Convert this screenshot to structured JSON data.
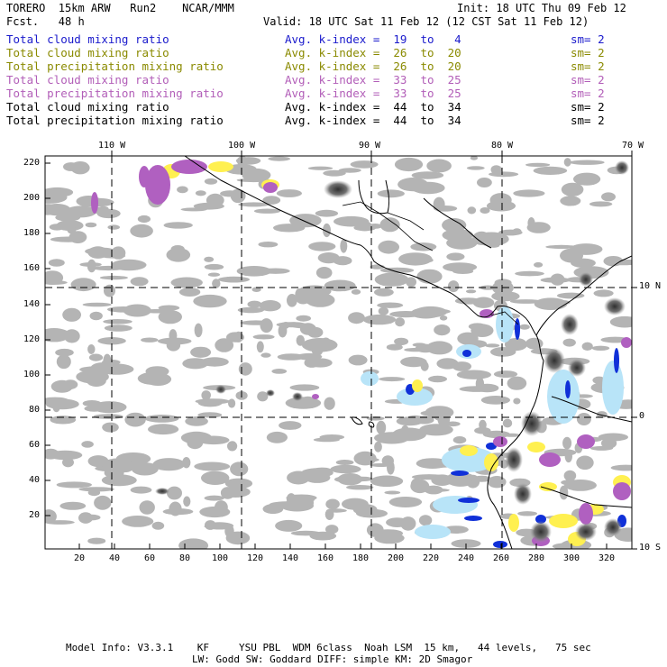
{
  "header": {
    "model": "TORERO  15km ARW   Run2    NCAR/MMM",
    "fcst": "Fcst.   48 h",
    "init": "Init: 18 UTC Thu 09 Feb 12",
    "valid": "Valid: 18 UTC Sat 11 Feb 12 (12 CST Sat 11 Feb 12)"
  },
  "legend": [
    {
      "field": "Total cloud mixing ratio",
      "index": "Avg. k-index =  19  to   4",
      "sm": "sm= 2",
      "color": "#1a1acc"
    },
    {
      "field": "Total cloud mixing ratio",
      "index": "Avg. k-index =  26  to  20",
      "sm": "sm= 2",
      "color": "#8a8a00"
    },
    {
      "field": "Total precipitation mixing ratio",
      "index": "Avg. k-index =  26  to  20",
      "sm": "sm= 2",
      "color": "#8a8a00"
    },
    {
      "field": "Total cloud mixing ratio",
      "index": "Avg. k-index =  33  to  25",
      "sm": "sm= 2",
      "color": "#b25eb8"
    },
    {
      "field": "Total precipitation mixing ratio",
      "index": "Avg. k-index =  33  to  25",
      "sm": "sm= 2",
      "color": "#b25eb8"
    },
    {
      "field": "Total cloud mixing ratio",
      "index": "Avg. k-index =  44  to  34",
      "sm": "sm= 2",
      "color": "#000000"
    },
    {
      "field": "Total precipitation mixing ratio",
      "index": "Avg. k-index =  44  to  34",
      "sm": "sm= 2",
      "color": "#000000"
    }
  ],
  "map": {
    "lon_labels": [
      "110 W",
      "100 W",
      "90 W",
      "80 W",
      "70 W"
    ],
    "lat_labels": [
      "10 N",
      "0",
      "10 S"
    ],
    "y_ticks": [
      "220",
      "200",
      "180",
      "160",
      "140",
      "120",
      "100",
      "80",
      "60",
      "40",
      "20"
    ],
    "x_ticks": [
      "20",
      "40",
      "60",
      "80",
      "100",
      "120",
      "140",
      "160",
      "180",
      "200",
      "220",
      "240",
      "260",
      "280",
      "300",
      "320"
    ],
    "colors": {
      "cloud_low": "#b4b4b4",
      "cloud_high": "#4a4a4a",
      "blue": "#1030d8",
      "light_blue": "#b8e4f8",
      "yellow": "#fff050",
      "purple": "#b060c0"
    }
  },
  "footer": {
    "line1": "Model Info: V3.3.1    KF     YSU PBL  WDM 6class  Noah LSM  15 km,   44 levels,   75 sec",
    "line2": "LW: Godd SW: Goddard DIFF: simple KM: 2D Smagor"
  }
}
